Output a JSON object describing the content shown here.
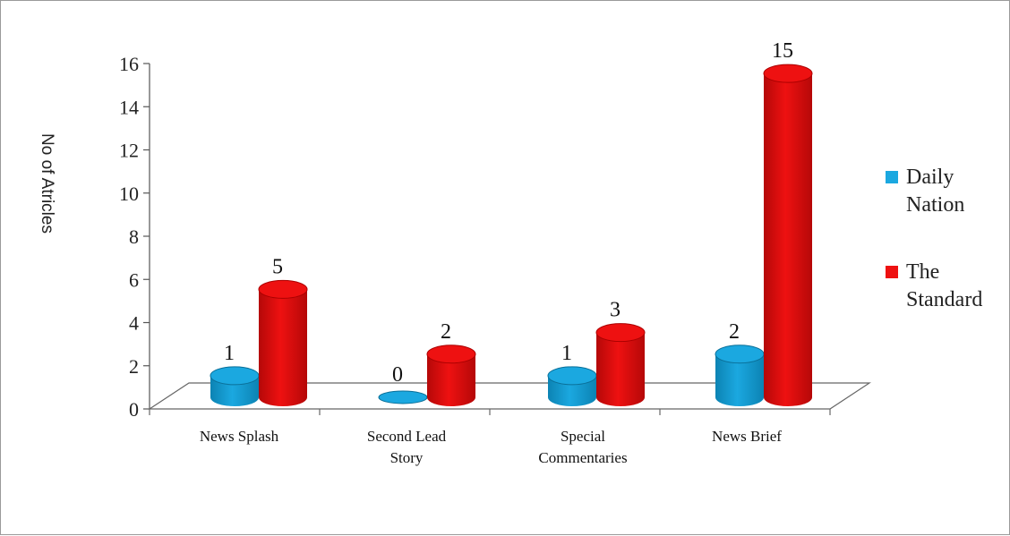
{
  "chart_data": {
    "type": "bar",
    "ylabel": "No of Atricles",
    "ylim": [
      0,
      16
    ],
    "yticks": [
      "0",
      "2",
      "4",
      "6",
      "8",
      "10",
      "12",
      "14",
      "16"
    ],
    "categories": [
      [
        "News Splash"
      ],
      [
        "Second Lead",
        "Story"
      ],
      [
        "Special",
        "Commentaries"
      ],
      [
        "News Brief"
      ]
    ],
    "series": [
      {
        "name": "Daily Nation",
        "values": [
          1,
          0,
          1,
          2
        ],
        "labels": [
          "1",
          "0",
          "1",
          "2"
        ],
        "color": "#1ba8e0"
      },
      {
        "name": "The Standard",
        "values": [
          5,
          2,
          3,
          15
        ],
        "labels": [
          "5",
          "2",
          "3",
          "15"
        ],
        "color": "#ee1111"
      }
    ],
    "legend": {
      "position": "right",
      "items": [
        [
          "Daily",
          "Nation"
        ],
        [
          "The",
          "Standard"
        ]
      ]
    },
    "bar_shape": "cylinder",
    "perspective": "3d-floor"
  }
}
